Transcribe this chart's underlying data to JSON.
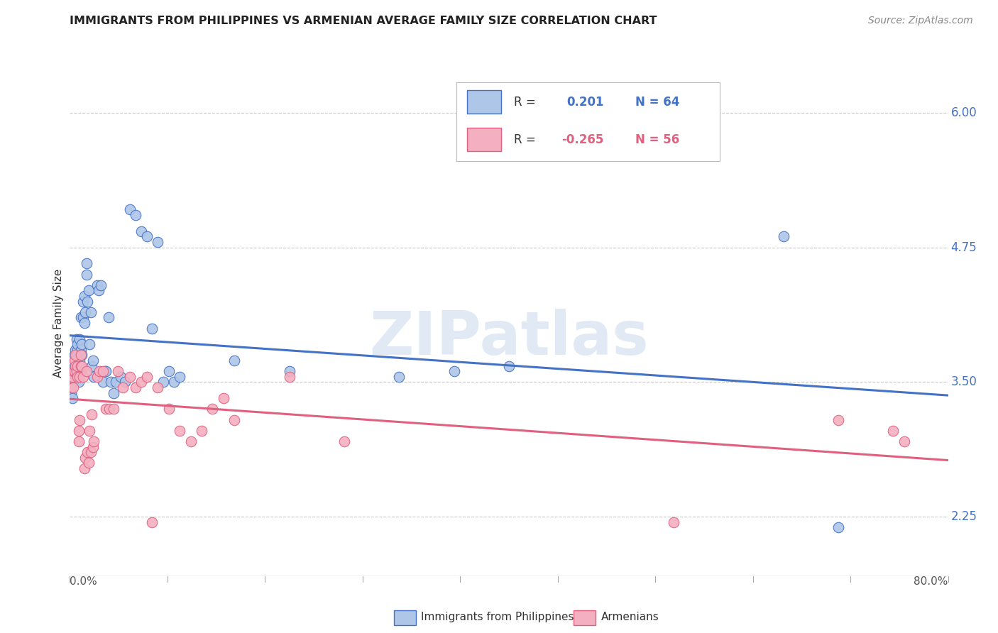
{
  "title": "IMMIGRANTS FROM PHILIPPINES VS ARMENIAN AVERAGE FAMILY SIZE CORRELATION CHART",
  "source": "Source: ZipAtlas.com",
  "ylabel": "Average Family Size",
  "yticks": [
    2.25,
    3.5,
    4.75,
    6.0
  ],
  "xlim": [
    0.0,
    0.8
  ],
  "ylim": [
    1.7,
    6.4
  ],
  "watermark": "ZIPatlas",
  "philippines_color": "#aec6e8",
  "philippines_line_color": "#4472c4",
  "armenian_color": "#f4afc0",
  "armenian_line_color": "#e06080",
  "philippines_R": 0.201,
  "philippines_N": 64,
  "armenian_R": -0.265,
  "armenian_N": 56,
  "philippines_x": [
    0.001,
    0.002,
    0.003,
    0.003,
    0.004,
    0.004,
    0.005,
    0.005,
    0.006,
    0.006,
    0.007,
    0.007,
    0.008,
    0.008,
    0.009,
    0.009,
    0.01,
    0.01,
    0.01,
    0.011,
    0.011,
    0.012,
    0.012,
    0.013,
    0.013,
    0.014,
    0.015,
    0.015,
    0.016,
    0.017,
    0.018,
    0.019,
    0.02,
    0.021,
    0.022,
    0.025,
    0.026,
    0.028,
    0.03,
    0.032,
    0.033,
    0.035,
    0.037,
    0.04,
    0.042,
    0.046,
    0.05,
    0.055,
    0.06,
    0.065,
    0.07,
    0.075,
    0.08,
    0.085,
    0.09,
    0.095,
    0.1,
    0.15,
    0.2,
    0.3,
    0.35,
    0.4,
    0.65,
    0.7
  ],
  "philippines_y": [
    3.4,
    3.35,
    3.5,
    3.6,
    3.65,
    3.75,
    3.7,
    3.8,
    3.9,
    3.75,
    3.8,
    3.85,
    3.5,
    3.65,
    3.7,
    3.9,
    4.1,
    3.8,
    3.6,
    3.75,
    3.85,
    4.1,
    4.25,
    4.3,
    4.05,
    4.15,
    4.5,
    4.6,
    4.25,
    4.35,
    3.85,
    4.15,
    3.65,
    3.7,
    3.55,
    4.4,
    4.35,
    4.4,
    3.5,
    3.6,
    3.6,
    4.1,
    3.5,
    3.4,
    3.5,
    3.55,
    3.5,
    5.1,
    5.05,
    4.9,
    4.85,
    4.0,
    4.8,
    3.5,
    3.6,
    3.5,
    3.55,
    3.7,
    3.6,
    3.55,
    3.6,
    3.65,
    4.85,
    2.15
  ],
  "armenian_x": [
    0.001,
    0.002,
    0.003,
    0.003,
    0.004,
    0.004,
    0.005,
    0.005,
    0.006,
    0.007,
    0.007,
    0.008,
    0.008,
    0.009,
    0.009,
    0.01,
    0.01,
    0.011,
    0.012,
    0.013,
    0.014,
    0.015,
    0.016,
    0.017,
    0.018,
    0.019,
    0.02,
    0.021,
    0.022,
    0.025,
    0.027,
    0.03,
    0.033,
    0.036,
    0.04,
    0.044,
    0.048,
    0.055,
    0.06,
    0.065,
    0.07,
    0.075,
    0.08,
    0.09,
    0.1,
    0.11,
    0.12,
    0.13,
    0.14,
    0.15,
    0.2,
    0.25,
    0.55,
    0.7,
    0.75,
    0.76
  ],
  "armenian_y": [
    3.45,
    3.55,
    3.6,
    3.45,
    3.6,
    3.7,
    3.65,
    3.75,
    3.6,
    3.55,
    3.65,
    2.95,
    3.05,
    3.15,
    3.55,
    3.65,
    3.75,
    3.65,
    3.55,
    2.7,
    2.8,
    3.6,
    2.85,
    2.75,
    3.05,
    2.85,
    3.2,
    2.9,
    2.95,
    3.55,
    3.6,
    3.6,
    3.25,
    3.25,
    3.25,
    3.6,
    3.45,
    3.55,
    3.45,
    3.5,
    3.55,
    2.2,
    3.45,
    3.25,
    3.05,
    2.95,
    3.05,
    3.25,
    3.35,
    3.15,
    3.55,
    2.95,
    2.2,
    3.15,
    3.05,
    2.95
  ]
}
